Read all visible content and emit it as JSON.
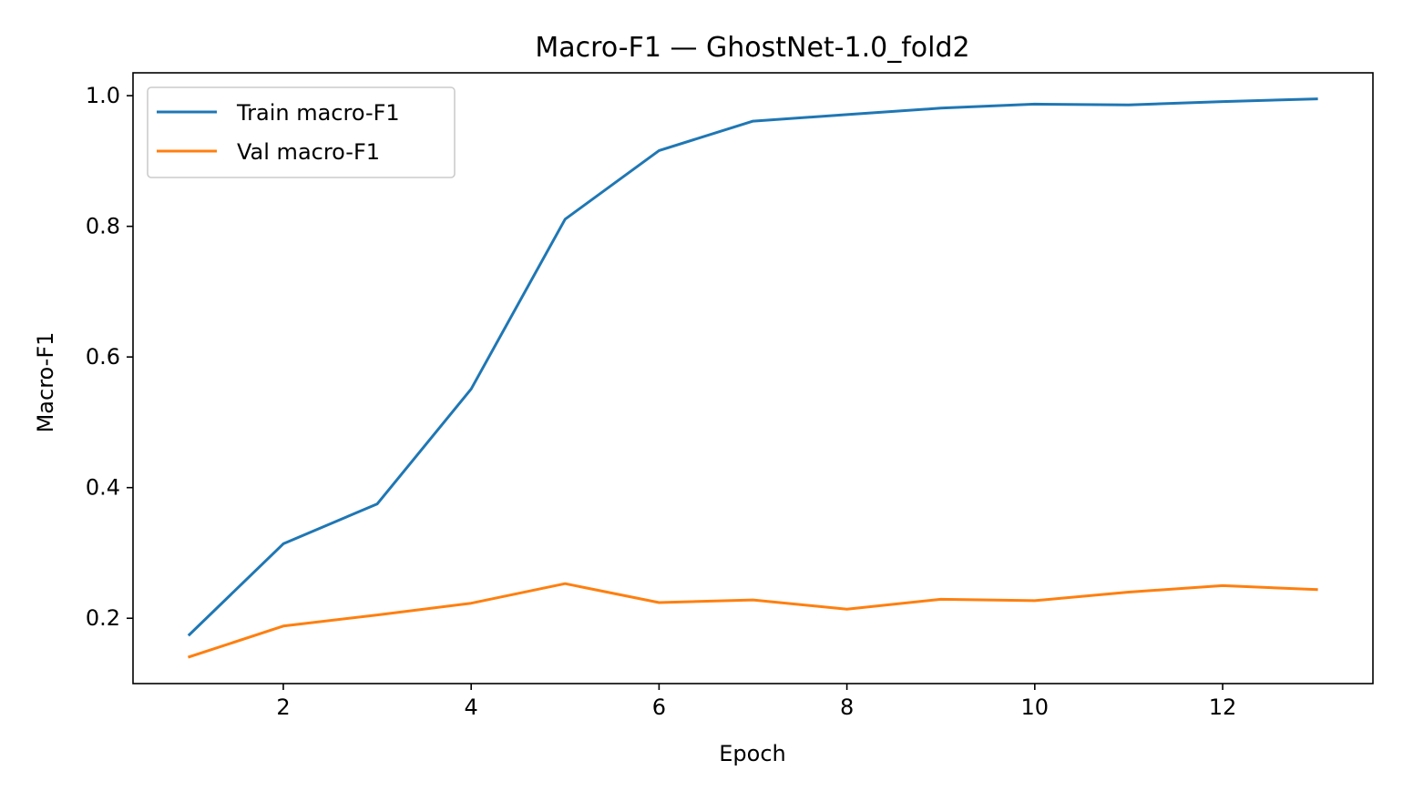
{
  "chart_data": {
    "type": "line",
    "title": "Macro-F1 — GhostNet-1.0_fold2",
    "xlabel": "Epoch",
    "ylabel": "Macro-F1",
    "x": [
      1,
      2,
      3,
      4,
      5,
      6,
      7,
      8,
      9,
      10,
      11,
      12,
      13
    ],
    "xlim": [
      0.4,
      13.6
    ],
    "ylim": [
      0.1,
      1.035
    ],
    "xticks": [
      2,
      4,
      6,
      8,
      10,
      12
    ],
    "xtick_labels": [
      "2",
      "4",
      "6",
      "8",
      "10",
      "12"
    ],
    "yticks": [
      0.2,
      0.4,
      0.6,
      0.8,
      1.0
    ],
    "ytick_labels": [
      "0.2",
      "0.4",
      "0.6",
      "0.8",
      "1.0"
    ],
    "grid": false,
    "legend_position": "top-left",
    "series": [
      {
        "name": "Train macro-F1",
        "color": "#1f77b4",
        "values": [
          0.175,
          0.314,
          0.375,
          0.551,
          0.811,
          0.916,
          0.961,
          0.971,
          0.981,
          0.987,
          0.986,
          0.991,
          0.995
        ]
      },
      {
        "name": "Val macro-F1",
        "color": "#ff7f0e",
        "values": [
          0.141,
          0.188,
          0.205,
          0.223,
          0.253,
          0.224,
          0.228,
          0.214,
          0.229,
          0.227,
          0.24,
          0.25,
          0.244
        ]
      }
    ]
  }
}
